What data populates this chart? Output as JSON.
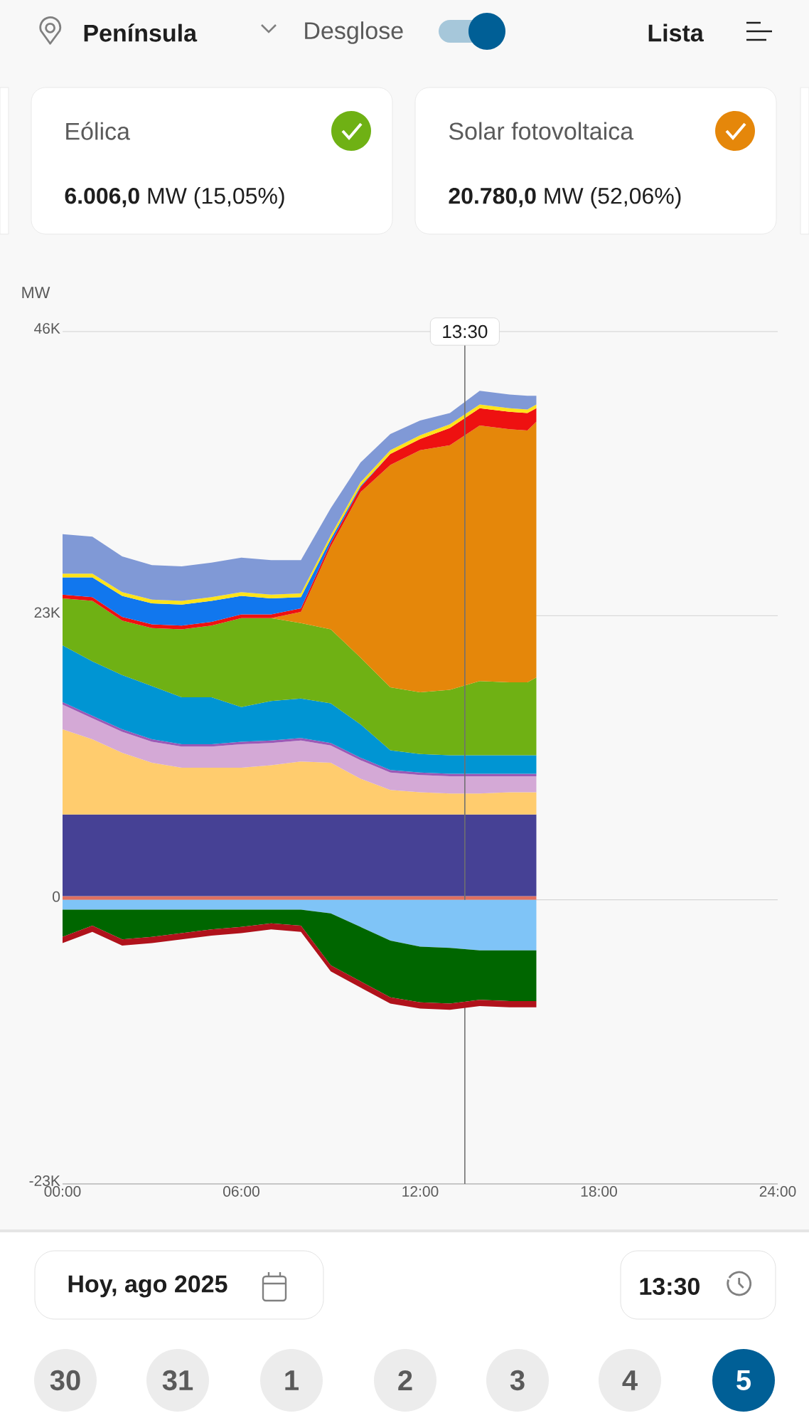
{
  "chart_data": [
    {
      "type": "area",
      "stacked": true,
      "ylabel": "MW",
      "x": [
        0,
        1,
        2,
        3,
        4,
        5,
        6,
        7,
        8,
        9,
        10,
        11,
        12,
        13,
        14,
        15,
        15.6,
        15.9
      ],
      "xlim": [
        0,
        24
      ],
      "ylim": [
        -23000,
        46000
      ],
      "xticks": [
        {
          "value": 0,
          "label": "00:00"
        },
        {
          "value": 6,
          "label": "06:00"
        },
        {
          "value": 12,
          "label": "12:00"
        },
        {
          "value": 18,
          "label": "18:00"
        },
        {
          "value": 24,
          "label": "24:00"
        }
      ],
      "yticks": [
        {
          "value": -23000,
          "label": "-23K"
        },
        {
          "value": 0,
          "label": "0"
        },
        {
          "value": 23000,
          "label": "23K"
        },
        {
          "value": 46000,
          "label": "46K"
        }
      ],
      "grid": "y",
      "series": [
        {
          "color": "#e07060",
          "values": [
            300,
            300,
            300,
            300,
            300,
            300,
            300,
            300,
            300,
            300,
            300,
            300,
            300,
            300,
            300,
            300,
            300,
            300
          ]
        },
        {
          "color": "#464195",
          "values": [
            6600,
            6600,
            6600,
            6600,
            6600,
            6600,
            6600,
            6600,
            6600,
            6600,
            6600,
            6600,
            6600,
            6600,
            6600,
            6600,
            6600,
            6600
          ]
        },
        {
          "color": "#ffcc6e",
          "values": [
            6900,
            6100,
            5000,
            4200,
            3800,
            3800,
            3800,
            4000,
            4300,
            4200,
            2900,
            2000,
            1800,
            1700,
            1700,
            1800,
            1800,
            1800
          ]
        },
        {
          "color": "#d4a9d6",
          "values": [
            2000,
            1700,
            1700,
            1700,
            1700,
            1700,
            1900,
            1800,
            1700,
            1400,
            1500,
            1400,
            1400,
            1400,
            1400,
            1300,
            1300,
            1300
          ]
        },
        {
          "color": "#9b59b6",
          "values": [
            200,
            200,
            200,
            200,
            200,
            200,
            200,
            200,
            200,
            200,
            200,
            200,
            200,
            200,
            200,
            200,
            200,
            200
          ]
        },
        {
          "color": "#0095d3",
          "values": [
            4600,
            4400,
            4400,
            4300,
            3800,
            3800,
            2800,
            3200,
            3200,
            3200,
            2700,
            1600,
            1500,
            1500,
            1500,
            1500,
            1500,
            1500
          ]
        },
        {
          "color": "#6fb114",
          "values": [
            3800,
            4900,
            4400,
            4700,
            5500,
            5800,
            7200,
            6700,
            6100,
            6000,
            5400,
            5100,
            5000,
            5300,
            6000,
            5900,
            5900,
            6300
          ]
        },
        {
          "color": "#e5870a",
          "values": [
            0,
            0,
            0,
            0,
            0,
            0,
            0,
            0,
            900,
            6700,
            13400,
            18000,
            19600,
            19800,
            20700,
            20500,
            20400,
            20700
          ]
        },
        {
          "color": "#ee1111",
          "values": [
            300,
            300,
            300,
            300,
            300,
            300,
            300,
            300,
            300,
            300,
            400,
            900,
            900,
            1400,
            1400,
            1400,
            1400,
            1100
          ]
        },
        {
          "color": "#1177ee",
          "values": [
            1400,
            1600,
            1700,
            1700,
            1700,
            1700,
            1500,
            1300,
            900,
            300,
            100,
            0,
            0,
            0,
            0,
            0,
            0,
            0
          ]
        },
        {
          "color": "#ffe31a",
          "values": [
            300,
            300,
            300,
            300,
            300,
            300,
            300,
            300,
            300,
            300,
            300,
            300,
            300,
            300,
            300,
            300,
            300,
            300
          ]
        },
        {
          "color": "#8099d6",
          "values": [
            3200,
            3000,
            2900,
            2800,
            2800,
            2800,
            2800,
            2800,
            2700,
            2200,
            1600,
            1300,
            1200,
            900,
            1100,
            1100,
            1100,
            700
          ]
        }
      ],
      "ref_lines": [
        {
          "axis": "x",
          "value": 13.5,
          "label": "13:30",
          "color": "#707070"
        }
      ],
      "annotations": [
        "Península",
        "Desglose",
        "Lista",
        "Eólica",
        "**6.006,0** MW (15,05%)",
        "Solar fotovoltaica",
        "**20.780,0** MW (52,06%)",
        "Hoy, ago 2025",
        "13:30",
        "30",
        "31",
        "1",
        "2",
        "3",
        "4",
        "5"
      ]
    },
    {
      "type": "area",
      "stacked": true,
      "tick_labels": false,
      "x": [
        0,
        1,
        2,
        3,
        4,
        5,
        6,
        7,
        8,
        9,
        10,
        11,
        12,
        13,
        14,
        15,
        15.6,
        15.9
      ],
      "xlim": [
        0,
        24
      ],
      "ylim": [
        -23000,
        46000
      ],
      "series": [
        {
          "color": "#7fc4f7",
          "values": [
            -800,
            -800,
            -800,
            -800,
            -800,
            -800,
            -800,
            -800,
            -800,
            -1100,
            -2200,
            -3300,
            -3800,
            -3900,
            -4100,
            -4100,
            -4100,
            -4100
          ]
        },
        {
          "color": "#006600",
          "values": [
            -2200,
            -1300,
            -2400,
            -2200,
            -1900,
            -1600,
            -1400,
            -1100,
            -1300,
            -4200,
            -4400,
            -4600,
            -4500,
            -4500,
            -4000,
            -4100,
            -4100,
            -4100
          ]
        },
        {
          "color": "#b0121b",
          "values": [
            -500,
            -500,
            -500,
            -500,
            -500,
            -500,
            -500,
            -500,
            -500,
            -500,
            -500,
            -500,
            -500,
            -500,
            -500,
            -500,
            -500,
            -500
          ]
        }
      ]
    }
  ]
}
